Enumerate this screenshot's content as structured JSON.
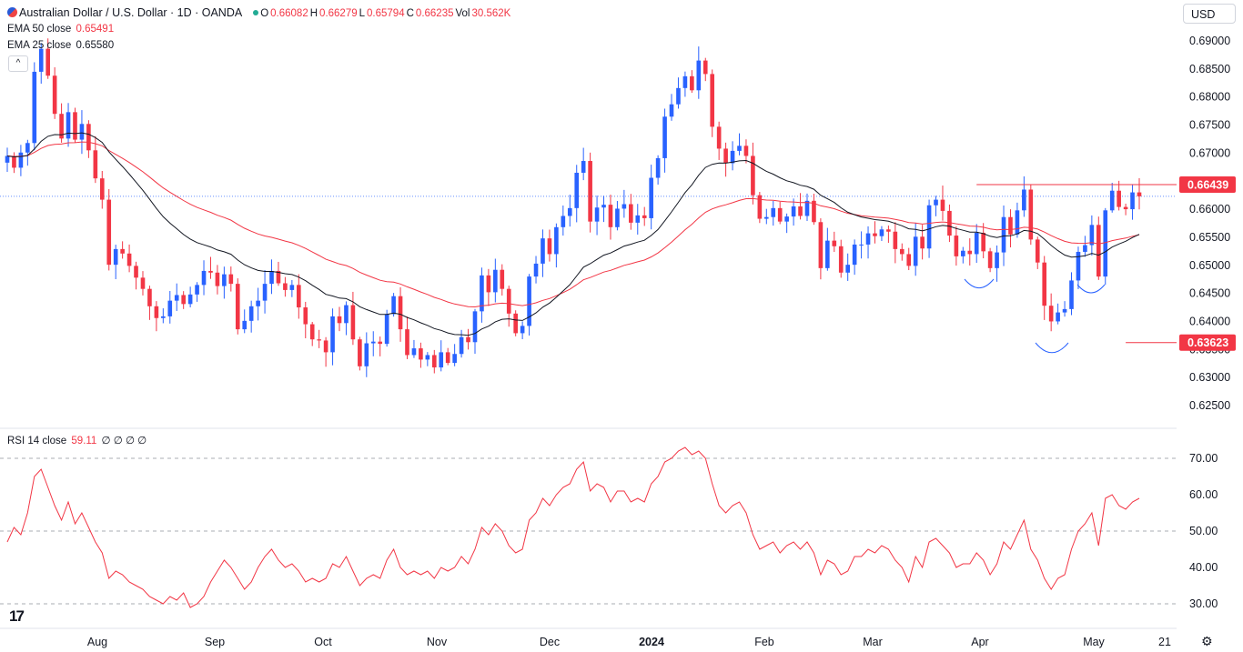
{
  "header": {
    "symbol_title": "Australian Dollar / U.S. Dollar · 1D · OANDA",
    "ohlc": [
      {
        "k": "O",
        "v": "0.66082"
      },
      {
        "k": "H",
        "v": "0.66279"
      },
      {
        "k": "L",
        "v": "0.65794"
      },
      {
        "k": "C",
        "v": "0.66235"
      },
      {
        "k": "Vol",
        "v": "30.562K"
      }
    ],
    "ema50_label": "EMA 50 close",
    "ema50_value": "0.65491",
    "ema25_label": "EMA 25 close",
    "ema25_value": "0.65580",
    "collapse_glyph": "^",
    "currency": "USD"
  },
  "rsi_legend": {
    "label": "RSI 14 close",
    "value": "59.11",
    "extras": "∅ ∅ ∅ ∅"
  },
  "footer": {
    "logo_text": "17",
    "settings_icon": "gear-icon"
  },
  "colors": {
    "up": "#2962ff",
    "down": "#f23645",
    "ema25": "#131722",
    "ema50": "#f23645",
    "rsi": "#f23645",
    "resistance": "#f23645",
    "pattern_arc": "#2962ff"
  },
  "chart_data": [
    {
      "type": "candlestick",
      "title": "Australian Dollar / U.S. Dollar · 1D · OANDA",
      "ylim": [
        0.6215,
        0.6915
      ],
      "y_ticks": [
        "0.69000",
        "0.68500",
        "0.68000",
        "0.67500",
        "0.67000",
        "0.66500",
        "0.66000",
        "0.65500",
        "0.65000",
        "0.64500",
        "0.64000",
        "0.63500",
        "0.63000",
        "0.62500"
      ],
      "x_ticks": [
        "Aug",
        "Sep",
        "Oct",
        "Nov",
        "Dec",
        "2024",
        "Feb",
        "Mar",
        "Apr",
        "May",
        "21"
      ],
      "price_labels": [
        "0.66439",
        "0.63623"
      ],
      "series": [
        {
          "name": "AUD/USD",
          "close": [
            0.6695,
            0.6674,
            0.6701,
            0.6718,
            0.6845,
            0.6886,
            0.6838,
            0.677,
            0.6726,
            0.6773,
            0.6724,
            0.6752,
            0.6705,
            0.6655,
            0.6617,
            0.6501,
            0.6529,
            0.6521,
            0.6499,
            0.6478,
            0.6458,
            0.6427,
            0.6406,
            0.6409,
            0.6437,
            0.6447,
            0.6431,
            0.6448,
            0.6465,
            0.649,
            0.6487,
            0.6463,
            0.6484,
            0.6467,
            0.6386,
            0.6401,
            0.6427,
            0.6437,
            0.6467,
            0.649,
            0.6468,
            0.6456,
            0.6465,
            0.6425,
            0.6395,
            0.6368,
            0.6366,
            0.6345,
            0.6409,
            0.6397,
            0.6429,
            0.6368,
            0.632,
            0.6361,
            0.6364,
            0.636,
            0.6413,
            0.6445,
            0.6386,
            0.634,
            0.6352,
            0.6332,
            0.634,
            0.6318,
            0.6345,
            0.6326,
            0.6342,
            0.6372,
            0.6363,
            0.6418,
            0.6482,
            0.6452,
            0.6492,
            0.6458,
            0.6414,
            0.6379,
            0.6392,
            0.648,
            0.6503,
            0.6548,
            0.652,
            0.6568,
            0.6588,
            0.6602,
            0.6665,
            0.6686,
            0.6578,
            0.6603,
            0.6608,
            0.6568,
            0.6601,
            0.6609,
            0.6576,
            0.6589,
            0.6584,
            0.6656,
            0.6691,
            0.6765,
            0.6787,
            0.6816,
            0.6837,
            0.6812,
            0.6865,
            0.6841,
            0.6747,
            0.6708,
            0.6682,
            0.6704,
            0.6713,
            0.6695,
            0.6625,
            0.6583,
            0.6586,
            0.6602,
            0.6578,
            0.6587,
            0.6605,
            0.6588,
            0.6615,
            0.6577,
            0.6495,
            0.6544,
            0.6534,
            0.6487,
            0.6501,
            0.6537,
            0.6537,
            0.6557,
            0.6552,
            0.6564,
            0.656,
            0.6529,
            0.652,
            0.6499,
            0.6551,
            0.653,
            0.6607,
            0.6617,
            0.6597,
            0.6553,
            0.6516,
            0.6526,
            0.652,
            0.6558,
            0.6525,
            0.6495,
            0.6523,
            0.6586,
            0.6555,
            0.6598,
            0.6635,
            0.6546,
            0.6505,
            0.6428,
            0.64,
            0.6416,
            0.6422,
            0.6473,
            0.6524,
            0.6536,
            0.6572,
            0.648,
            0.6598,
            0.6633,
            0.6604,
            0.66,
            0.663,
            0.6623
          ]
        },
        {
          "name": "EMA 50 close",
          "last_value": 0.65491
        },
        {
          "name": "EMA 25 close",
          "last_value": 0.6558
        }
      ],
      "annotations": {
        "resistance_level": 0.66439,
        "support_level": 0.63623
      },
      "grid": false,
      "legend_position": "top-left"
    },
    {
      "type": "line",
      "title": "RSI 14 close",
      "ylim": [
        25,
        75
      ],
      "y_ticks": [
        "70.00",
        "60.00",
        "50.00",
        "40.00",
        "30.00"
      ],
      "reference_lines": [
        70,
        50,
        30
      ],
      "series": [
        {
          "name": "RSI 14 close",
          "values": [
            47,
            51,
            49,
            55,
            65,
            67,
            62,
            57,
            53,
            58,
            52,
            55,
            51,
            47,
            44,
            37,
            39,
            38,
            36,
            35,
            34,
            32,
            31,
            30,
            32,
            31,
            33,
            29,
            30,
            32,
            36,
            39,
            42,
            40,
            37,
            34,
            36,
            40,
            43,
            45,
            42,
            40,
            41,
            39,
            36,
            37,
            36,
            37,
            41,
            40,
            43,
            39,
            35,
            37,
            38,
            37,
            42,
            45,
            40,
            38,
            39,
            38,
            39,
            37,
            40,
            39,
            40,
            43,
            41,
            45,
            51,
            49,
            52,
            50,
            46,
            44,
            45,
            53,
            55,
            59,
            57,
            60,
            62,
            63,
            67,
            69,
            61,
            63,
            62,
            58,
            61,
            61,
            58,
            59,
            58,
            63,
            65,
            69,
            70,
            72,
            73,
            71,
            72,
            70,
            63,
            57,
            55,
            57,
            58,
            55,
            49,
            45,
            46,
            47,
            44,
            46,
            47,
            45,
            47,
            44,
            38,
            42,
            41,
            38,
            39,
            43,
            43,
            45,
            44,
            46,
            45,
            42,
            40,
            36,
            43,
            40,
            47,
            48,
            46,
            44,
            40,
            41,
            41,
            44,
            42,
            38,
            41,
            47,
            45,
            49,
            53,
            45,
            42,
            37,
            34,
            37,
            38,
            45,
            50,
            52,
            55,
            46,
            59,
            60,
            57,
            56,
            58,
            59
          ]
        }
      ],
      "grid": false
    }
  ]
}
